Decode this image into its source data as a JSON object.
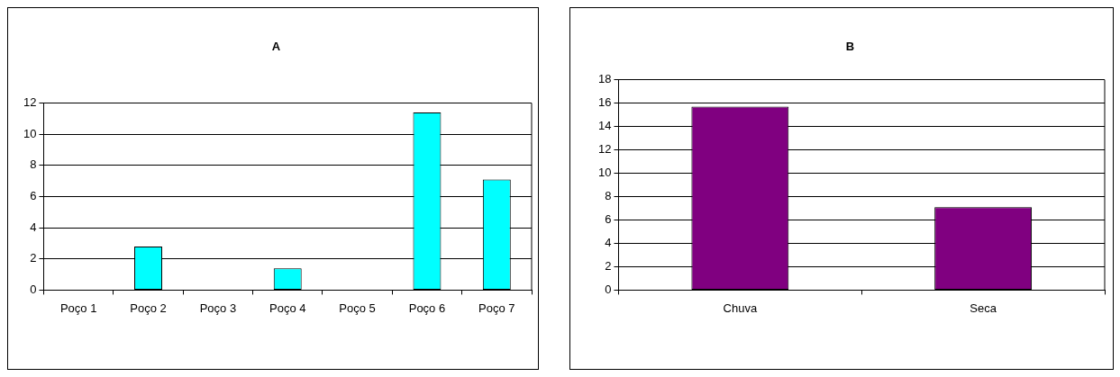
{
  "chart_data": [
    {
      "type": "bar",
      "title": "A",
      "categories": [
        "Poço 1",
        "Poço 2",
        "Poço 3",
        "Poço 4",
        "Poço 5",
        "Poço 6",
        "Poço 7"
      ],
      "values": [
        0,
        2.8,
        0,
        1.4,
        0,
        11.4,
        7.1
      ],
      "color": "#00ffff",
      "ylim": [
        0,
        12
      ],
      "yticks": [
        0,
        2,
        4,
        6,
        8,
        10,
        12
      ],
      "grid": "y"
    },
    {
      "type": "bar",
      "title": "B",
      "categories": [
        "Chuva",
        "Seca"
      ],
      "values": [
        15.7,
        7.1
      ],
      "color": "#800080",
      "ylim": [
        0,
        18
      ],
      "yticks": [
        0,
        2,
        4,
        6,
        8,
        10,
        12,
        14,
        16,
        18
      ],
      "grid": "y"
    }
  ]
}
